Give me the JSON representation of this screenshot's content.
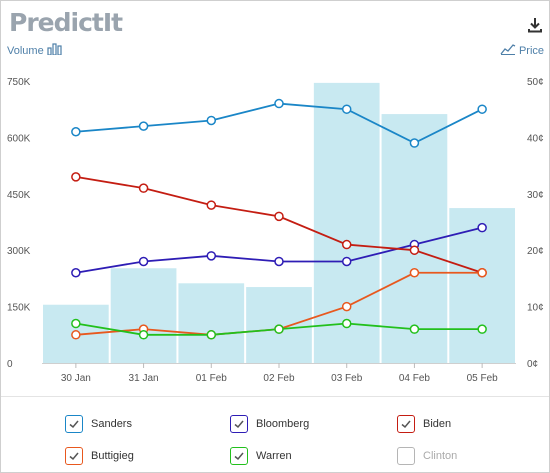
{
  "brand": {
    "logo_text": "PredictIt"
  },
  "controls": {
    "volume_label": "Volume",
    "price_label": "Price"
  },
  "chart_data": {
    "type": "line",
    "categories": [
      "30 Jan",
      "31 Jan",
      "01 Feb",
      "02 Feb",
      "03 Feb",
      "04 Feb",
      "05 Feb"
    ],
    "volume": {
      "axis_ticks": [
        "0",
        "150K",
        "300K",
        "450K",
        "600K",
        "750K"
      ],
      "ylim": [
        0,
        750000
      ],
      "values": [
        155000,
        252000,
        212000,
        202000,
        745000,
        662000,
        412000
      ],
      "color": "#c8e9f1"
    },
    "price": {
      "axis_ticks": [
        "0¢",
        "10¢",
        "20¢",
        "30¢",
        "40¢",
        "50¢"
      ],
      "ylim": [
        0,
        50
      ]
    },
    "series": [
      {
        "name": "Sanders",
        "color": "#1a86c7",
        "values": [
          41,
          42,
          43,
          46,
          45,
          39,
          45
        ]
      },
      {
        "name": "Bloomberg",
        "color": "#2e1db5",
        "values": [
          16,
          18,
          19,
          18,
          18,
          21,
          24
        ]
      },
      {
        "name": "Biden",
        "color": "#c41d12",
        "values": [
          33,
          31,
          28,
          26,
          21,
          20,
          16
        ]
      },
      {
        "name": "Buttigieg",
        "color": "#e8581e",
        "values": [
          5,
          6,
          5,
          6,
          10,
          16,
          16
        ]
      },
      {
        "name": "Warren",
        "color": "#22c01c",
        "values": [
          7,
          5,
          5,
          6,
          7,
          6,
          6
        ]
      }
    ]
  },
  "legend": [
    {
      "name": "Sanders",
      "color": "#1a86c7",
      "checked": true
    },
    {
      "name": "Bloomberg",
      "color": "#2e1db5",
      "checked": true
    },
    {
      "name": "Biden",
      "color": "#c41d12",
      "checked": true
    },
    {
      "name": "Buttigieg",
      "color": "#e8581e",
      "checked": true
    },
    {
      "name": "Warren",
      "color": "#22c01c",
      "checked": true
    },
    {
      "name": "Clinton",
      "color": "#b5b5b5",
      "checked": false
    }
  ]
}
